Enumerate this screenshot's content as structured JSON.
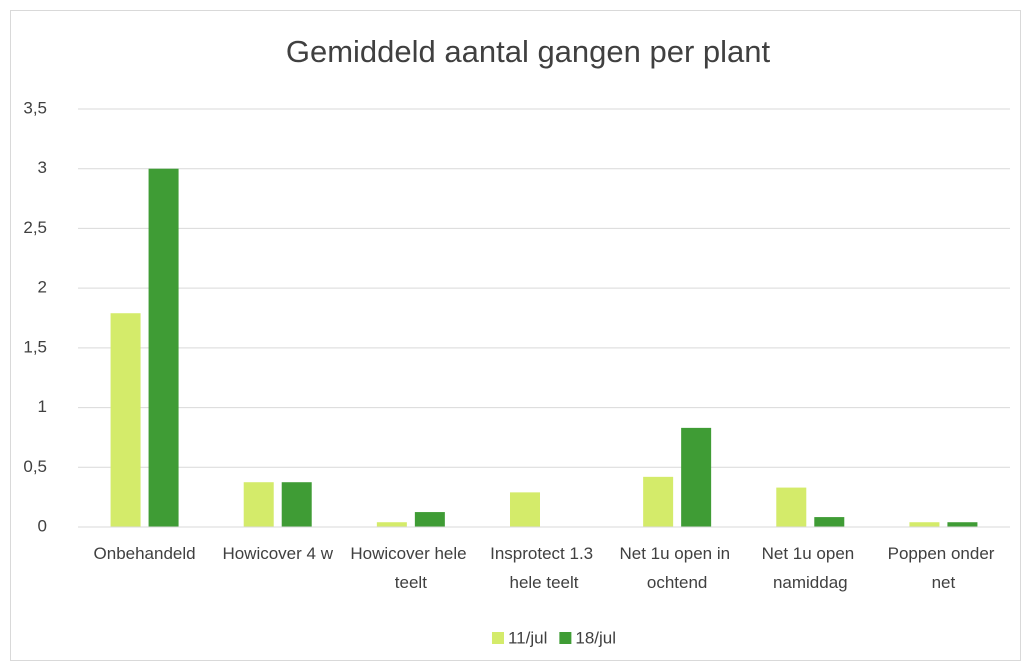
{
  "chart_data": {
    "type": "bar",
    "title": "Gemiddeld aantal gangen per plant",
    "categories": [
      "Onbehandeld",
      "Howicover 4 w",
      "Howicover hele teelt",
      "Insprotect 1.3 hele teelt",
      "Net 1u open in ochtend",
      "Net 1u open namiddag",
      "Poppen onder net"
    ],
    "series": [
      {
        "name": "11/jul",
        "color": "#d4eb6a",
        "values": [
          1.79,
          0.375,
          0.04,
          0.29,
          0.42,
          0.33,
          0.04
        ]
      },
      {
        "name": "18/jul",
        "color": "#3f9c35",
        "values": [
          3,
          0.375,
          0.125,
          0,
          0.83,
          0.083,
          0.04
        ]
      }
    ],
    "ylim": [
      0,
      3.5
    ],
    "yticks": [
      0,
      {
        "value": 0.5,
        "label": "0,5"
      },
      1,
      {
        "value": 1.5,
        "label": "1,5"
      },
      2,
      {
        "value": 2.5,
        "label": "2,5"
      },
      3,
      {
        "value": 3.5,
        "label": "3,5"
      }
    ],
    "grid": true,
    "legend": "bottom"
  }
}
